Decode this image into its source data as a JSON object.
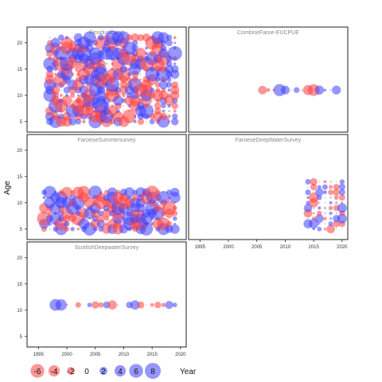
{
  "chart_data": {
    "type": "scatter",
    "subtype": "bubble-residuals-grid",
    "ylabel": "Age",
    "xlabel": "Year",
    "xlim": [
      1993,
      2021
    ],
    "ylim": [
      3,
      23
    ],
    "xticks": [
      1995,
      2000,
      2005,
      2010,
      2015,
      2020
    ],
    "yticks": [
      5,
      10,
      15,
      20
    ],
    "colors": {
      "negative": "#ff4040",
      "positive": "#4040ff"
    },
    "legend": {
      "values": [
        -6,
        -4,
        -2,
        0,
        2,
        4,
        6,
        8
      ],
      "labels": [
        "-6",
        "-4",
        "-2",
        "0",
        "2",
        "4",
        "6",
        "8"
      ]
    },
    "panels": [
      {
        "title": "Residualcatch",
        "years": [
          1997,
          2019
        ],
        "ages": [
          5,
          21
        ],
        "size": 0.85
      },
      {
        "title": "CombineFaroe-EUCPUE",
        "years": [
          2006,
          2019
        ],
        "ages": [
          11,
          11
        ],
        "size": 0.6
      },
      {
        "title": "FaroeseSummersurvey",
        "years": [
          1996,
          2019
        ],
        "ages": [
          5,
          12
        ],
        "size": 0.8
      },
      {
        "title": "FaroeseDeepWaterSurvey",
        "years": [
          2014,
          2020
        ],
        "ages": [
          5,
          14
        ],
        "size": 0.4
      },
      {
        "title": "ScottishDeepwaterSurvey",
        "years": [
          1998,
          2019
        ],
        "ages": [
          11,
          11
        ],
        "size": 0.55
      }
    ]
  }
}
